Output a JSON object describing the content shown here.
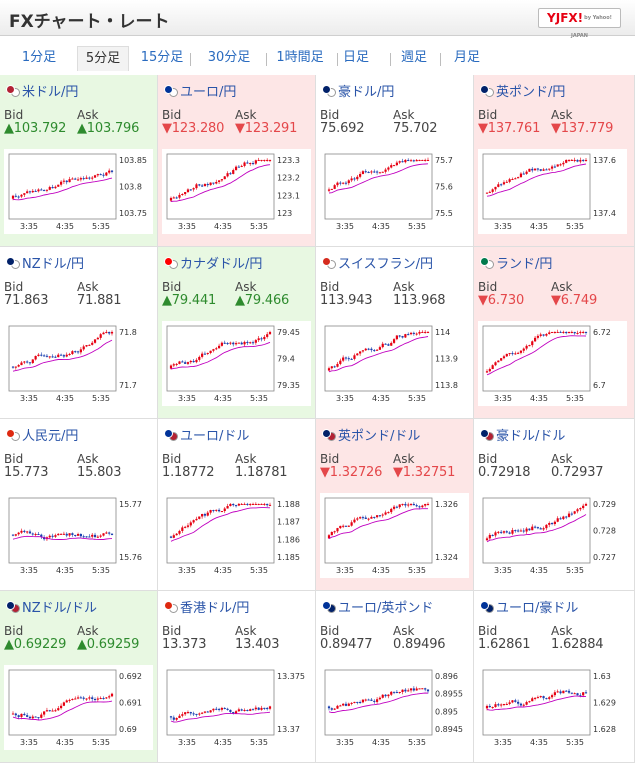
{
  "header": {
    "title": "FXチャート・レート",
    "logo": "YJFX!",
    "logo_sub": "by Yahoo! JAPAN"
  },
  "tabs": [
    {
      "label": "1分足",
      "active": false
    },
    {
      "label": "5分足",
      "active": true
    },
    {
      "label": "15分足",
      "active": false
    },
    {
      "label": "30分足",
      "active": false
    },
    {
      "label": "1時間足",
      "active": false
    },
    {
      "label": "日足",
      "active": false
    },
    {
      "label": "週足",
      "active": false
    },
    {
      "label": "月足",
      "active": false
    }
  ],
  "labels": {
    "bid": "Bid",
    "ask": "Ask"
  },
  "colors": {
    "up_bg": "#e8f8e2",
    "down_bg": "#fde6e6",
    "up_text": "#2e8b2e",
    "down_text": "#e4474a",
    "candle_up": "#e60012",
    "candle_down": "#1a3fb0",
    "ma_line": "#c000c0",
    "link": "#2a54a8"
  },
  "pairs": [
    {
      "name": "米ドル/円",
      "flags": [
        "#b22234",
        "#ffffff"
      ],
      "trend": "up",
      "bid": "▲103.792",
      "ask": "▲103.796",
      "x_ticks": [
        "3:35",
        "4:35",
        "5:35"
      ],
      "y_ticks": [
        "103.85",
        "103.8",
        "103.75"
      ]
    },
    {
      "name": "ユーロ/円",
      "flags": [
        "#003399",
        "#ffffff"
      ],
      "trend": "down",
      "bid": "▼123.280",
      "ask": "▼123.291",
      "x_ticks": [
        "3:35",
        "4:35",
        "5:35"
      ],
      "y_ticks": [
        "123.3",
        "123.2",
        "123.1",
        "123"
      ]
    },
    {
      "name": "豪ドル/円",
      "flags": [
        "#012169",
        "#ffffff"
      ],
      "trend": "neutral",
      "bid": "75.692",
      "ask": "75.702",
      "x_ticks": [
        "3:35",
        "4:35",
        "5:35"
      ],
      "y_ticks": [
        "75.7",
        "75.6",
        "75.5"
      ]
    },
    {
      "name": "英ポンド/円",
      "flags": [
        "#012169",
        "#ffffff"
      ],
      "trend": "down",
      "bid": "▼137.761",
      "ask": "▼137.779",
      "x_ticks": [
        "3:35",
        "4:35",
        "5:35"
      ],
      "y_ticks": [
        "137.6",
        "137.4"
      ]
    },
    {
      "name": "NZドル/円",
      "flags": [
        "#012169",
        "#ffffff"
      ],
      "trend": "neutral",
      "bid": "71.863",
      "ask": "71.881",
      "x_ticks": [
        "3:35",
        "4:35",
        "5:35"
      ],
      "y_ticks": [
        "71.8",
        "71.7"
      ]
    },
    {
      "name": "カナダドル/円",
      "flags": [
        "#ff0000",
        "#ffffff"
      ],
      "trend": "up",
      "bid": "▲79.441",
      "ask": "▲79.466",
      "x_ticks": [
        "3:35",
        "4:35",
        "5:35"
      ],
      "y_ticks": [
        "79.45",
        "79.4",
        "79.35"
      ]
    },
    {
      "name": "スイスフラン/円",
      "flags": [
        "#d52b1e",
        "#ffffff"
      ],
      "trend": "neutral",
      "bid": "113.943",
      "ask": "113.968",
      "x_ticks": [
        "3:35",
        "4:35",
        "5:35"
      ],
      "y_ticks": [
        "114",
        "113.9",
        "113.8"
      ]
    },
    {
      "name": "ランド/円",
      "flags": [
        "#007a4d",
        "#ffffff"
      ],
      "trend": "down",
      "bid": "▼6.730",
      "ask": "▼6.749",
      "x_ticks": [
        "3:35",
        "4:35",
        "5:35"
      ],
      "y_ticks": [
        "6.72",
        "6.7"
      ]
    },
    {
      "name": "人民元/円",
      "flags": [
        "#de2910",
        "#ffffff"
      ],
      "trend": "neutral",
      "bid": "15.773",
      "ask": "15.803",
      "x_ticks": [
        "3:35",
        "4:35",
        "5:35"
      ],
      "y_ticks": [
        "15.77",
        "15.76"
      ]
    },
    {
      "name": "ユーロ/ドル",
      "flags": [
        "#003399",
        "#b22234"
      ],
      "trend": "neutral",
      "bid": "1.18772",
      "ask": "1.18781",
      "x_ticks": [
        "3:35",
        "4:35",
        "5:35"
      ],
      "y_ticks": [
        "1.188",
        "1.187",
        "1.186",
        "1.185"
      ]
    },
    {
      "name": "英ポンド/ドル",
      "flags": [
        "#012169",
        "#b22234"
      ],
      "trend": "down",
      "bid": "▼1.32726",
      "ask": "▼1.32751",
      "x_ticks": [
        "3:35",
        "4:35",
        "5:35"
      ],
      "y_ticks": [
        "1.326",
        "1.324"
      ]
    },
    {
      "name": "豪ドル/ドル",
      "flags": [
        "#012169",
        "#b22234"
      ],
      "trend": "neutral",
      "bid": "0.72918",
      "ask": "0.72937",
      "x_ticks": [
        "3:35",
        "4:35",
        "5:35"
      ],
      "y_ticks": [
        "0.729",
        "0.728",
        "0.727"
      ]
    },
    {
      "name": "NZドル/ドル",
      "flags": [
        "#012169",
        "#b22234"
      ],
      "trend": "up",
      "bid": "▲0.69229",
      "ask": "▲0.69259",
      "x_ticks": [
        "3:35",
        "4:35",
        "5:35"
      ],
      "y_ticks": [
        "0.692",
        "0.691",
        "0.69"
      ]
    },
    {
      "name": "香港ドル/円",
      "flags": [
        "#de2910",
        "#ffffff"
      ],
      "trend": "neutral",
      "bid": "13.373",
      "ask": "13.403",
      "x_ticks": [
        "3:35",
        "4:35",
        "5:35"
      ],
      "y_ticks": [
        "13.375",
        "13.37"
      ]
    },
    {
      "name": "ユーロ/英ポンド",
      "flags": [
        "#003399",
        "#012169"
      ],
      "trend": "neutral",
      "bid": "0.89477",
      "ask": "0.89496",
      "x_ticks": [
        "3:35",
        "4:35",
        "5:35"
      ],
      "y_ticks": [
        "0.896",
        "0.8955",
        "0.895",
        "0.8945"
      ]
    },
    {
      "name": "ユーロ/豪ドル",
      "flags": [
        "#003399",
        "#012169"
      ],
      "trend": "neutral",
      "bid": "1.62861",
      "ask": "1.62884",
      "x_ticks": [
        "3:35",
        "4:35",
        "5:35"
      ],
      "y_ticks": [
        "1.63",
        "1.629",
        "1.628"
      ]
    }
  ]
}
